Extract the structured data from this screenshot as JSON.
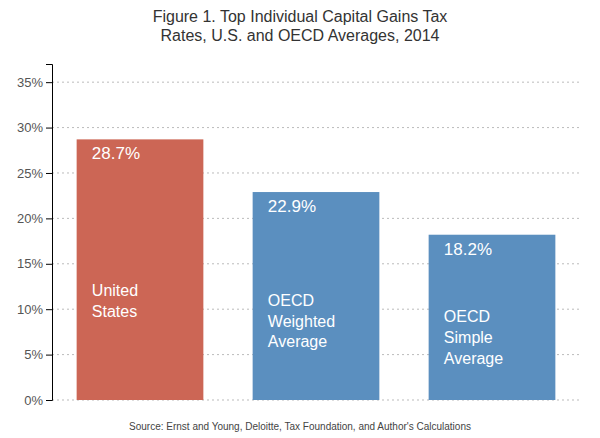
{
  "chart_data": {
    "type": "bar",
    "title": "Figure 1. Top Individual Capital Gains Tax\nRates, U.S. and OECD Averages, 2014",
    "categories": [
      "United\nStates",
      "OECD\nWeighted\nAverage",
      "OECD\nSimple\nAverage"
    ],
    "values": [
      28.7,
      22.9,
      18.2
    ],
    "value_labels": [
      "28.7%",
      "22.9%",
      "18.2%"
    ],
    "data_labels": true,
    "colors": [
      "#cc6655",
      "#5b8fbf",
      "#5b8fbf"
    ],
    "ylim": [
      0,
      37
    ],
    "yticks": [
      {
        "value": 0,
        "label": "0%"
      },
      {
        "value": 5,
        "label": "5%"
      },
      {
        "value": 10,
        "label": "10%"
      },
      {
        "value": 15,
        "label": "15%"
      },
      {
        "value": 20,
        "label": "20%"
      },
      {
        "value": 25,
        "label": "25%"
      },
      {
        "value": 30,
        "label": "30%"
      },
      {
        "value": 35,
        "label": "35%"
      }
    ],
    "grid": true,
    "tick_labels": "y",
    "annotations": [
      "Source:  Ernst and Young, Deloitte, Tax Foundation, and Author's Calculations"
    ]
  }
}
